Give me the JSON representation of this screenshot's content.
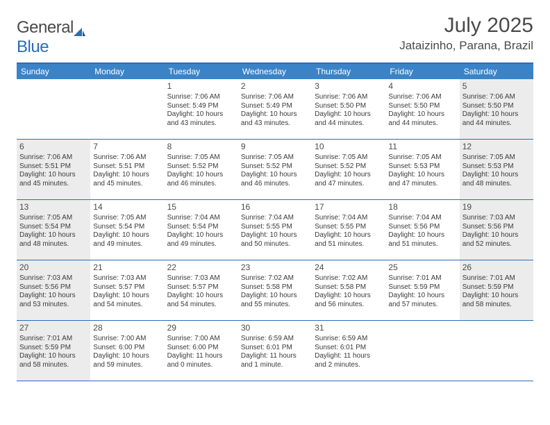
{
  "logo": {
    "word1": "General",
    "word2": "Blue"
  },
  "title": "July 2025",
  "location": "Jataizinho, Parana, Brazil",
  "colors": {
    "header_bg": "#3b83c7",
    "border": "#2a6db8",
    "shade": "#ececec",
    "text": "#4a4a4a"
  },
  "day_headers": [
    "Sunday",
    "Monday",
    "Tuesday",
    "Wednesday",
    "Thursday",
    "Friday",
    "Saturday"
  ],
  "weeks": [
    [
      {
        "n": "",
        "sr": "",
        "ss": "",
        "dl": "",
        "shade": false,
        "empty": true
      },
      {
        "n": "",
        "sr": "",
        "ss": "",
        "dl": "",
        "shade": false,
        "empty": true
      },
      {
        "n": "1",
        "sr": "Sunrise: 7:06 AM",
        "ss": "Sunset: 5:49 PM",
        "dl": "Daylight: 10 hours and 43 minutes.",
        "shade": false
      },
      {
        "n": "2",
        "sr": "Sunrise: 7:06 AM",
        "ss": "Sunset: 5:49 PM",
        "dl": "Daylight: 10 hours and 43 minutes.",
        "shade": false
      },
      {
        "n": "3",
        "sr": "Sunrise: 7:06 AM",
        "ss": "Sunset: 5:50 PM",
        "dl": "Daylight: 10 hours and 44 minutes.",
        "shade": false
      },
      {
        "n": "4",
        "sr": "Sunrise: 7:06 AM",
        "ss": "Sunset: 5:50 PM",
        "dl": "Daylight: 10 hours and 44 minutes.",
        "shade": false
      },
      {
        "n": "5",
        "sr": "Sunrise: 7:06 AM",
        "ss": "Sunset: 5:50 PM",
        "dl": "Daylight: 10 hours and 44 minutes.",
        "shade": true
      }
    ],
    [
      {
        "n": "6",
        "sr": "Sunrise: 7:06 AM",
        "ss": "Sunset: 5:51 PM",
        "dl": "Daylight: 10 hours and 45 minutes.",
        "shade": true
      },
      {
        "n": "7",
        "sr": "Sunrise: 7:06 AM",
        "ss": "Sunset: 5:51 PM",
        "dl": "Daylight: 10 hours and 45 minutes.",
        "shade": false
      },
      {
        "n": "8",
        "sr": "Sunrise: 7:05 AM",
        "ss": "Sunset: 5:52 PM",
        "dl": "Daylight: 10 hours and 46 minutes.",
        "shade": false
      },
      {
        "n": "9",
        "sr": "Sunrise: 7:05 AM",
        "ss": "Sunset: 5:52 PM",
        "dl": "Daylight: 10 hours and 46 minutes.",
        "shade": false
      },
      {
        "n": "10",
        "sr": "Sunrise: 7:05 AM",
        "ss": "Sunset: 5:52 PM",
        "dl": "Daylight: 10 hours and 47 minutes.",
        "shade": false
      },
      {
        "n": "11",
        "sr": "Sunrise: 7:05 AM",
        "ss": "Sunset: 5:53 PM",
        "dl": "Daylight: 10 hours and 47 minutes.",
        "shade": false
      },
      {
        "n": "12",
        "sr": "Sunrise: 7:05 AM",
        "ss": "Sunset: 5:53 PM",
        "dl": "Daylight: 10 hours and 48 minutes.",
        "shade": true
      }
    ],
    [
      {
        "n": "13",
        "sr": "Sunrise: 7:05 AM",
        "ss": "Sunset: 5:54 PM",
        "dl": "Daylight: 10 hours and 48 minutes.",
        "shade": true
      },
      {
        "n": "14",
        "sr": "Sunrise: 7:05 AM",
        "ss": "Sunset: 5:54 PM",
        "dl": "Daylight: 10 hours and 49 minutes.",
        "shade": false
      },
      {
        "n": "15",
        "sr": "Sunrise: 7:04 AM",
        "ss": "Sunset: 5:54 PM",
        "dl": "Daylight: 10 hours and 49 minutes.",
        "shade": false
      },
      {
        "n": "16",
        "sr": "Sunrise: 7:04 AM",
        "ss": "Sunset: 5:55 PM",
        "dl": "Daylight: 10 hours and 50 minutes.",
        "shade": false
      },
      {
        "n": "17",
        "sr": "Sunrise: 7:04 AM",
        "ss": "Sunset: 5:55 PM",
        "dl": "Daylight: 10 hours and 51 minutes.",
        "shade": false
      },
      {
        "n": "18",
        "sr": "Sunrise: 7:04 AM",
        "ss": "Sunset: 5:56 PM",
        "dl": "Daylight: 10 hours and 51 minutes.",
        "shade": false
      },
      {
        "n": "19",
        "sr": "Sunrise: 7:03 AM",
        "ss": "Sunset: 5:56 PM",
        "dl": "Daylight: 10 hours and 52 minutes.",
        "shade": true
      }
    ],
    [
      {
        "n": "20",
        "sr": "Sunrise: 7:03 AM",
        "ss": "Sunset: 5:56 PM",
        "dl": "Daylight: 10 hours and 53 minutes.",
        "shade": true
      },
      {
        "n": "21",
        "sr": "Sunrise: 7:03 AM",
        "ss": "Sunset: 5:57 PM",
        "dl": "Daylight: 10 hours and 54 minutes.",
        "shade": false
      },
      {
        "n": "22",
        "sr": "Sunrise: 7:03 AM",
        "ss": "Sunset: 5:57 PM",
        "dl": "Daylight: 10 hours and 54 minutes.",
        "shade": false
      },
      {
        "n": "23",
        "sr": "Sunrise: 7:02 AM",
        "ss": "Sunset: 5:58 PM",
        "dl": "Daylight: 10 hours and 55 minutes.",
        "shade": false
      },
      {
        "n": "24",
        "sr": "Sunrise: 7:02 AM",
        "ss": "Sunset: 5:58 PM",
        "dl": "Daylight: 10 hours and 56 minutes.",
        "shade": false
      },
      {
        "n": "25",
        "sr": "Sunrise: 7:01 AM",
        "ss": "Sunset: 5:59 PM",
        "dl": "Daylight: 10 hours and 57 minutes.",
        "shade": false
      },
      {
        "n": "26",
        "sr": "Sunrise: 7:01 AM",
        "ss": "Sunset: 5:59 PM",
        "dl": "Daylight: 10 hours and 58 minutes.",
        "shade": true
      }
    ],
    [
      {
        "n": "27",
        "sr": "Sunrise: 7:01 AM",
        "ss": "Sunset: 5:59 PM",
        "dl": "Daylight: 10 hours and 58 minutes.",
        "shade": true
      },
      {
        "n": "28",
        "sr": "Sunrise: 7:00 AM",
        "ss": "Sunset: 6:00 PM",
        "dl": "Daylight: 10 hours and 59 minutes.",
        "shade": false
      },
      {
        "n": "29",
        "sr": "Sunrise: 7:00 AM",
        "ss": "Sunset: 6:00 PM",
        "dl": "Daylight: 11 hours and 0 minutes.",
        "shade": false
      },
      {
        "n": "30",
        "sr": "Sunrise: 6:59 AM",
        "ss": "Sunset: 6:01 PM",
        "dl": "Daylight: 11 hours and 1 minute.",
        "shade": false
      },
      {
        "n": "31",
        "sr": "Sunrise: 6:59 AM",
        "ss": "Sunset: 6:01 PM",
        "dl": "Daylight: 11 hours and 2 minutes.",
        "shade": false
      },
      {
        "n": "",
        "sr": "",
        "ss": "",
        "dl": "",
        "shade": false,
        "empty": true
      },
      {
        "n": "",
        "sr": "",
        "ss": "",
        "dl": "",
        "shade": false,
        "empty": true
      }
    ]
  ]
}
